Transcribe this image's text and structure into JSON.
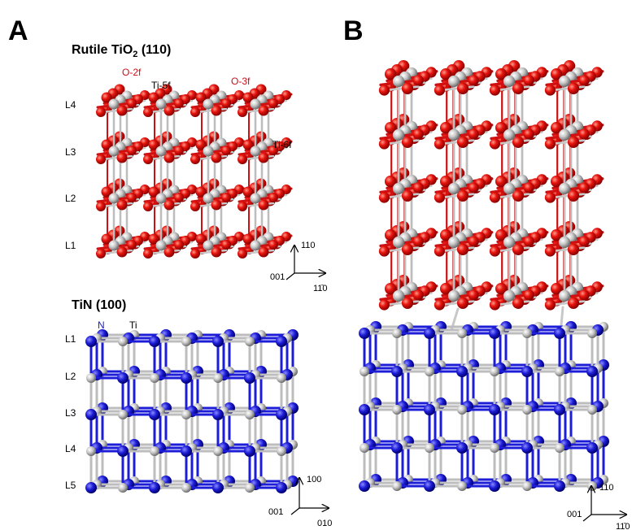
{
  "panel_a": {
    "label": "A",
    "rutile": {
      "title": [
        "Rutile TiO",
        "2",
        " (110)"
      ],
      "sites": [
        "O-2f",
        "Ti-5f",
        "O-3f",
        "Ti-6f"
      ],
      "layers": [
        "L4",
        "L3",
        "L2",
        "L1"
      ],
      "axes": [
        "110",
        "001",
        "11̄0"
      ]
    },
    "tin": {
      "title": "TiN (100)",
      "atoms": [
        "N",
        "Ti"
      ],
      "layers": [
        "L1",
        "L2",
        "L3",
        "L4",
        "L5"
      ],
      "axes": [
        "100",
        "001",
        "010"
      ]
    }
  },
  "panel_b": {
    "label": "B",
    "axes": [
      "110",
      "001",
      "11̄0"
    ]
  }
}
